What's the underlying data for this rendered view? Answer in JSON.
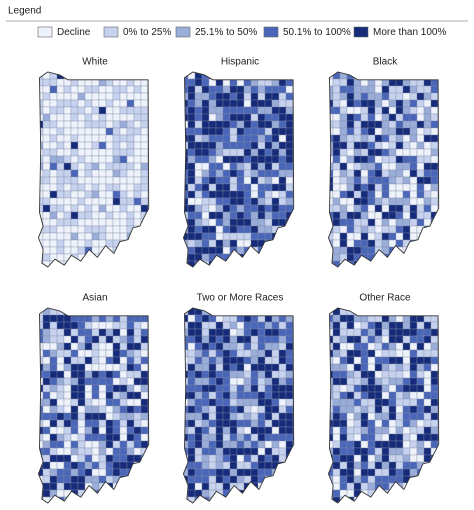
{
  "legend": {
    "title": "Legend",
    "items": [
      {
        "label": "Decline",
        "color": "#eef2fa"
      },
      {
        "label": "0% to 25%",
        "color": "#c7d3ee"
      },
      {
        "label": "25.1% to 50%",
        "color": "#9aacd8"
      },
      {
        "label": "50.1% to 100%",
        "color": "#4a66b8"
      },
      {
        "label": "More than 100%",
        "color": "#162b7a"
      }
    ]
  },
  "panels": [
    {
      "title": "White"
    },
    {
      "title": "Hispanic"
    },
    {
      "title": "Black"
    },
    {
      "title": "Asian"
    },
    {
      "title": "Two or More Races"
    },
    {
      "title": "Other Race"
    }
  ]
}
